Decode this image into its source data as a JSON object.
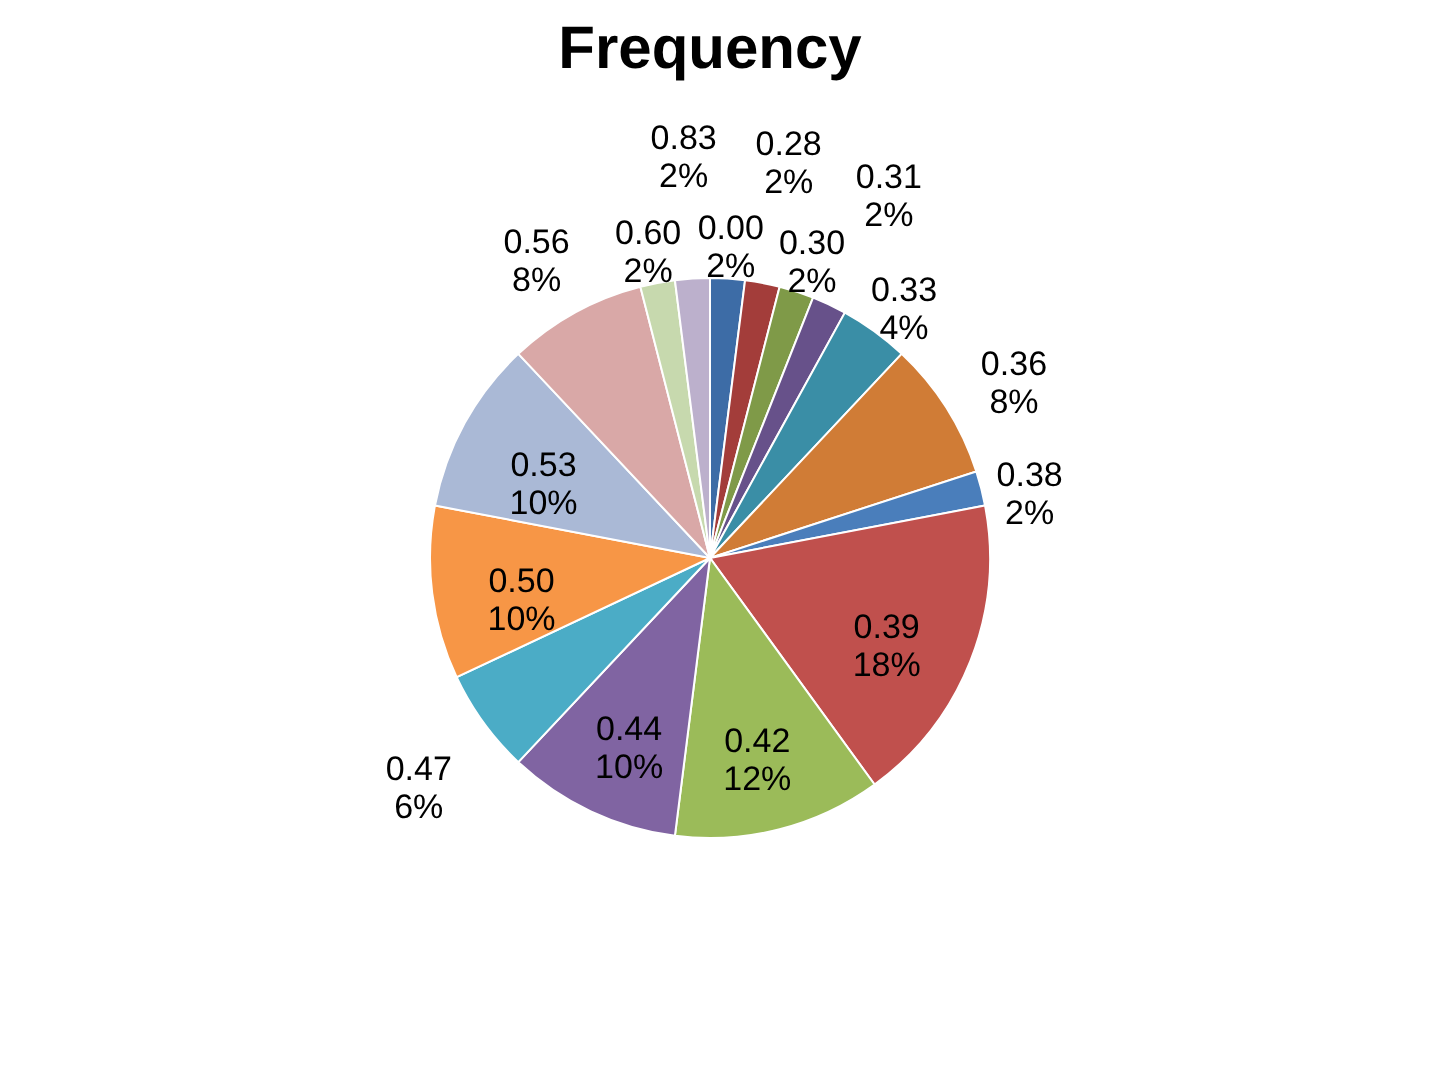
{
  "chart_data": {
    "type": "pie",
    "title": "Frequency",
    "categories": [
      "0.00",
      "0.28",
      "0.30",
      "0.31",
      "0.33",
      "0.36",
      "0.38",
      "0.39",
      "0.42",
      "0.44",
      "0.47",
      "0.50",
      "0.53",
      "0.56",
      "0.60",
      "0.83"
    ],
    "values": [
      2,
      2,
      2,
      2,
      4,
      8,
      2,
      18,
      12,
      10,
      6,
      10,
      10,
      8,
      2,
      2
    ],
    "value_labels": [
      "2%",
      "2%",
      "2%",
      "2%",
      "4%",
      "8%",
      "2%",
      "18%",
      "12%",
      "10%",
      "6%",
      "10%",
      "10%",
      "8%",
      "2%",
      "2%"
    ],
    "colors": [
      "#3d6ca6",
      "#a33d3a",
      "#7f9a48",
      "#67518a",
      "#3a8ea6",
      "#d07c36",
      "#4a7ebb",
      "#c0504d",
      "#9bbb59",
      "#8064a2",
      "#4bacc6",
      "#f79646",
      "#aab9d6",
      "#d9a8a7",
      "#c7d9ae",
      "#bcb0cc"
    ],
    "legend": false
  }
}
